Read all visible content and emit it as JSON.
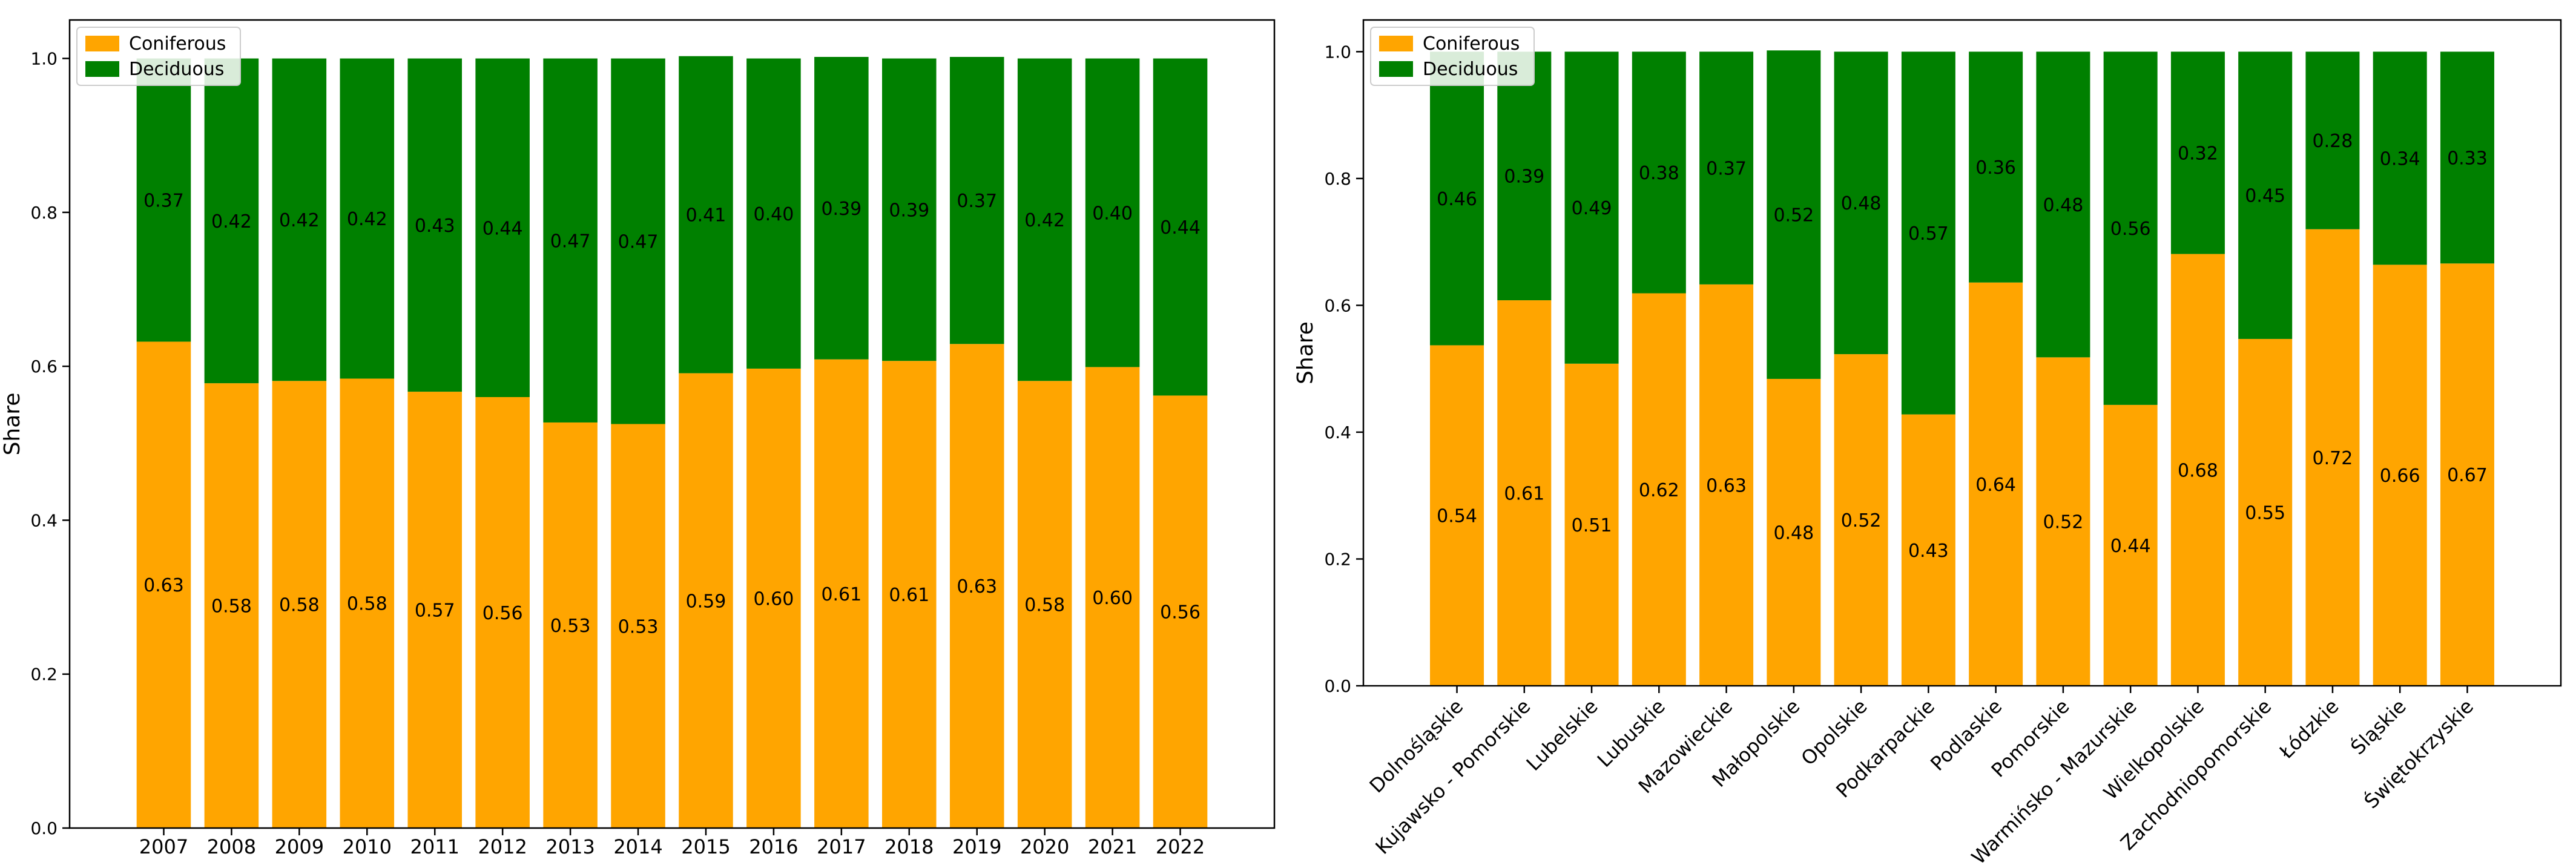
{
  "chart_data": [
    {
      "type": "bar",
      "stacked": true,
      "title": "",
      "xlabel": "",
      "ylabel": "Share",
      "ylim": [
        0,
        1.05
      ],
      "yticks": [
        "0.0",
        "0.2",
        "0.4",
        "0.6",
        "0.8",
        "1.0"
      ],
      "grid": false,
      "legend_position": "top-left",
      "categories": [
        "2007",
        "2008",
        "2009",
        "2010",
        "2011",
        "2012",
        "2013",
        "2014",
        "2015",
        "2016",
        "2017",
        "2018",
        "2019",
        "2020",
        "2021",
        "2022"
      ],
      "series": [
        {
          "name": "Coniferous",
          "color": "#FFA500",
          "values": [
            0.632,
            0.578,
            0.581,
            0.584,
            0.567,
            0.56,
            0.527,
            0.525,
            0.591,
            0.597,
            0.609,
            0.607,
            0.629,
            0.581,
            0.599,
            0.562
          ],
          "labels": [
            "0.63",
            "0.58",
            "0.58",
            "0.58",
            "0.57",
            "0.56",
            "0.53",
            "0.53",
            "0.59",
            "0.60",
            "0.61",
            "0.61",
            "0.63",
            "0.58",
            "0.60",
            "0.56"
          ]
        },
        {
          "name": "Deciduous",
          "color": "#008000",
          "values": [
            0.368,
            0.422,
            0.419,
            0.416,
            0.433,
            0.44,
            0.473,
            0.475,
            0.412,
            0.403,
            0.393,
            0.393,
            0.373,
            0.419,
            0.401,
            0.438
          ],
          "labels": [
            "0.37",
            "0.42",
            "0.42",
            "0.42",
            "0.43",
            "0.44",
            "0.47",
            "0.47",
            "0.41",
            "0.40",
            "0.39",
            "0.39",
            "0.37",
            "0.42",
            "0.40",
            "0.44"
          ]
        }
      ]
    },
    {
      "type": "bar",
      "stacked": true,
      "title": "",
      "xlabel": "",
      "ylabel": "Share",
      "ylim": [
        0,
        1.05
      ],
      "yticks": [
        "0.0",
        "0.2",
        "0.4",
        "0.6",
        "0.8",
        "1.0"
      ],
      "grid": false,
      "legend_position": "top-left",
      "categories": [
        "Dolnośląskie",
        "Kujawsko - Pomorskie",
        "Lubelskie",
        "Lubuskie",
        "Mazowieckie",
        "Małopolskie",
        "Opolskie",
        "Podkarpackie",
        "Podlaskie",
        "Pomorskie",
        "Warmińsko - Mazurskie",
        "Wielkopolskie",
        "Zachodniopomorskie",
        "Łódzkie",
        "Śląskie",
        "Świętokrzyskie"
      ],
      "series": [
        {
          "name": "Coniferous",
          "color": "#FFA500",
          "values": [
            0.537,
            0.608,
            0.508,
            0.619,
            0.633,
            0.484,
            0.523,
            0.428,
            0.636,
            0.518,
            0.443,
            0.681,
            0.547,
            0.72,
            0.664,
            0.666
          ],
          "labels": [
            "0.54",
            "0.61",
            "0.51",
            "0.62",
            "0.63",
            "0.48",
            "0.52",
            "0.43",
            "0.64",
            "0.52",
            "0.44",
            "0.68",
            "0.55",
            "0.72",
            "0.66",
            "0.67"
          ]
        },
        {
          "name": "Deciduous",
          "color": "#008000",
          "values": [
            0.463,
            0.392,
            0.492,
            0.381,
            0.367,
            0.518,
            0.477,
            0.572,
            0.364,
            0.482,
            0.557,
            0.319,
            0.453,
            0.28,
            0.336,
            0.334
          ],
          "labels": [
            "0.46",
            "0.39",
            "0.49",
            "0.38",
            "0.37",
            "0.52",
            "0.48",
            "0.57",
            "0.36",
            "0.48",
            "0.56",
            "0.32",
            "0.45",
            "0.28",
            "0.34",
            "0.33"
          ]
        }
      ]
    }
  ]
}
